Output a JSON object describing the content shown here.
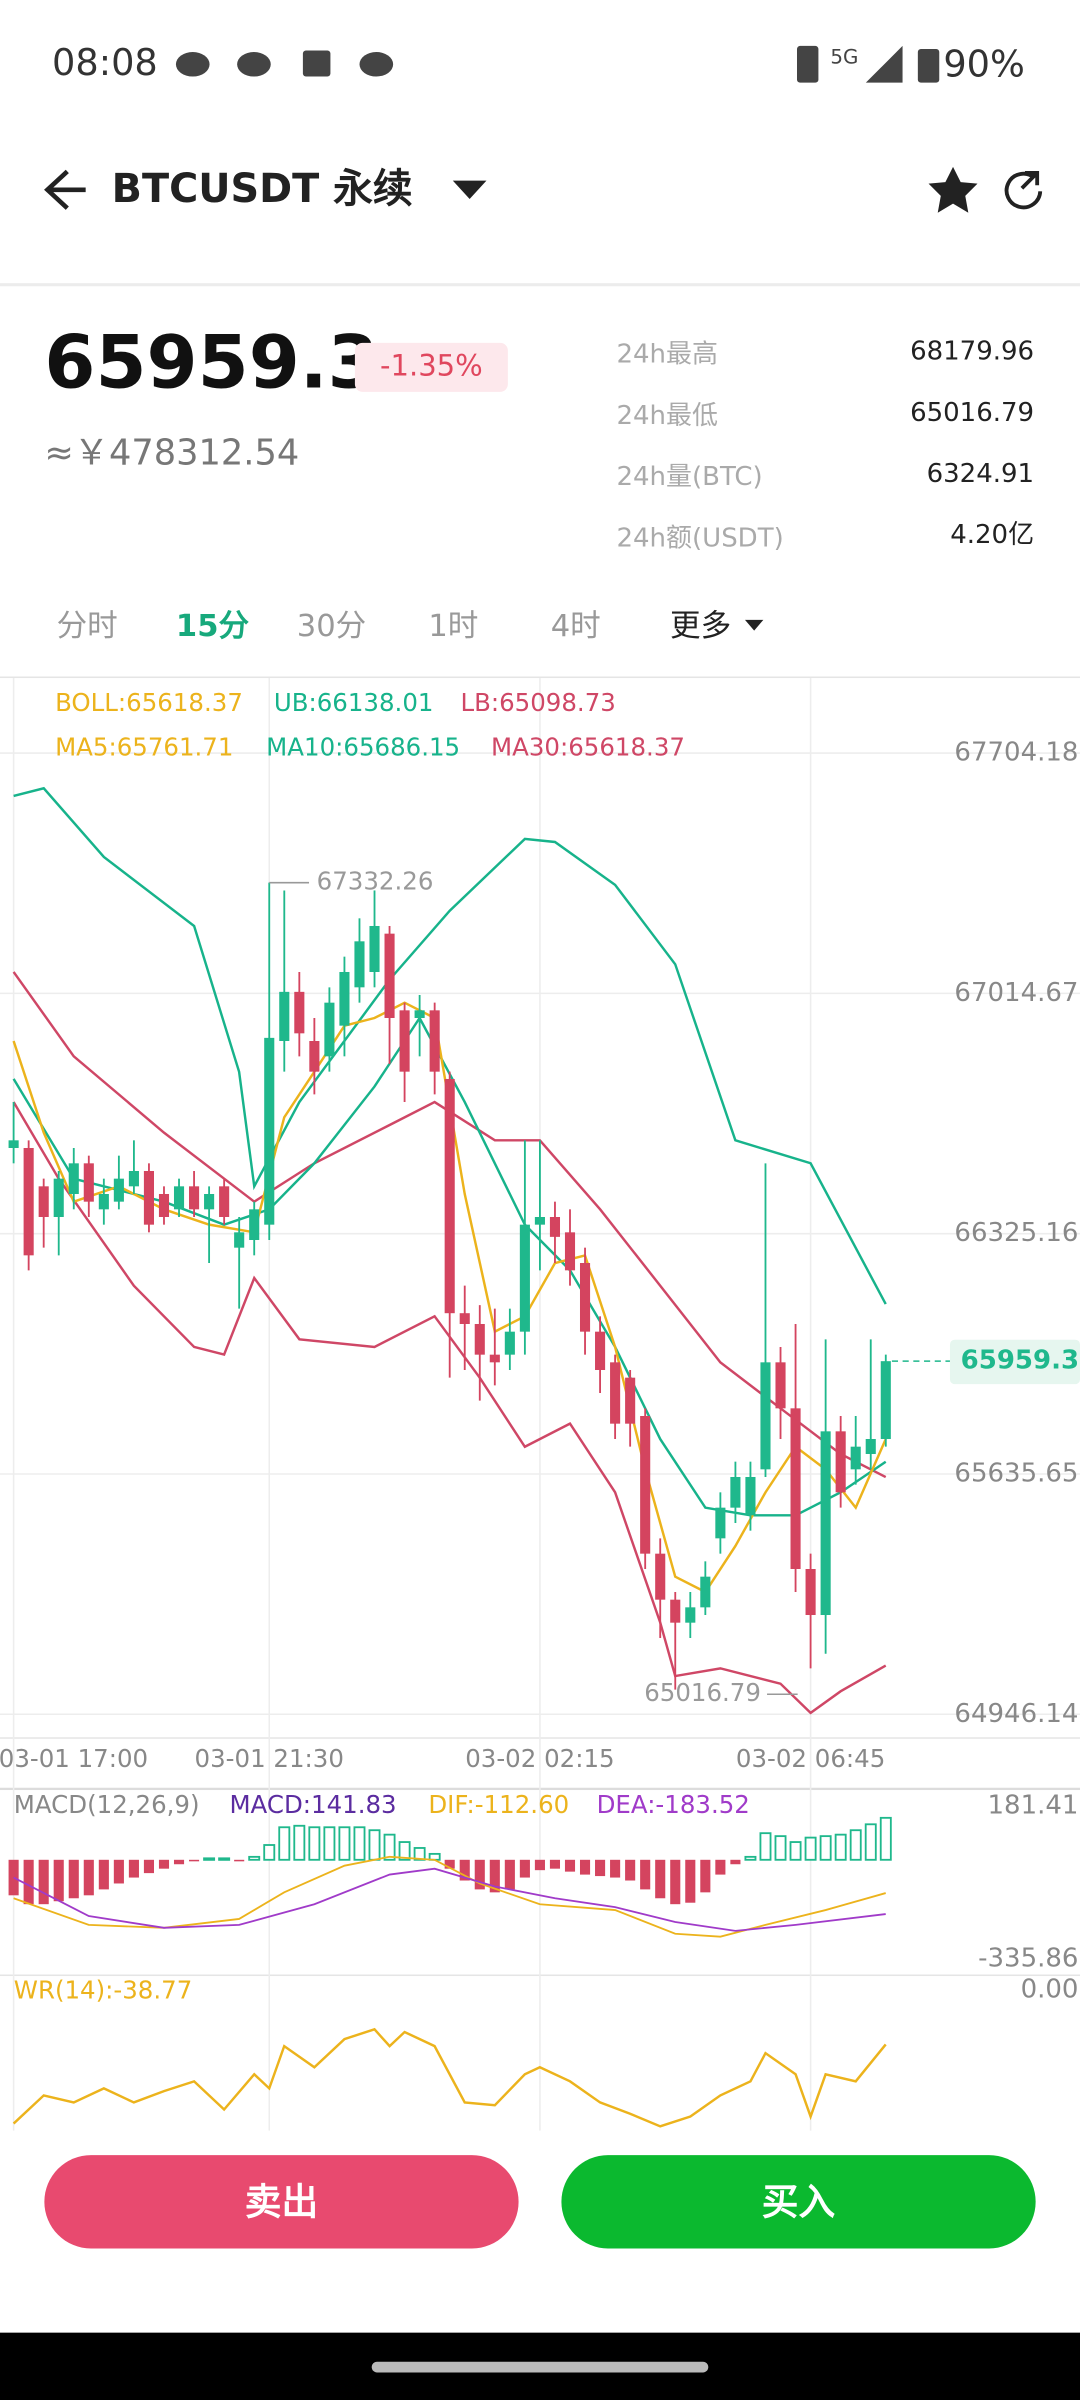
{
  "status_bar": {
    "time": "08:08",
    "network": "5G",
    "battery": "90%"
  },
  "header": {
    "title": "BTCUSDT 永续"
  },
  "ticker": {
    "price": "65959.3",
    "change": "-1.35%",
    "cny": "≈￥478312.54"
  },
  "stats": [
    {
      "label": "24h最高",
      "value": "68179.96"
    },
    {
      "label": "24h最低",
      "value": "65016.79"
    },
    {
      "label": "24h量(BTC)",
      "value": "6324.91"
    },
    {
      "label": "24h额(USDT)",
      "value": "4.20亿"
    }
  ],
  "tabs": [
    "分时",
    "15分",
    "30分",
    "1时",
    "4时",
    "更多"
  ],
  "buttons": {
    "sell": "卖出",
    "buy": "买入"
  },
  "chart_data": [
    {
      "type": "candlestick",
      "up_color": "#1fb88c",
      "down_color": "#d4445f",
      "legend": [
        {
          "text": "BOLL:65618.37",
          "color": "#ecb31c"
        },
        {
          "text": "UB:66138.01",
          "color": "#17b38b"
        },
        {
          "text": "LB:65098.73",
          "color": "#cf4766"
        },
        {
          "text": "MA5:65761.71",
          "color": "#ecb31c"
        },
        {
          "text": "MA10:65686.15",
          "color": "#17b38b"
        },
        {
          "text": "MA30:65618.37",
          "color": "#cf4766"
        }
      ],
      "categories": [
        "03-01 17:00",
        null,
        null,
        null,
        null,
        null,
        null,
        null,
        null,
        null,
        null,
        null,
        null,
        null,
        null,
        null,
        null,
        "03-01 21:30",
        null,
        null,
        null,
        null,
        null,
        null,
        null,
        null,
        null,
        null,
        null,
        null,
        null,
        null,
        null,
        null,
        null,
        "03-02 02:15",
        null,
        null,
        null,
        null,
        null,
        null,
        null,
        null,
        null,
        null,
        null,
        null,
        null,
        null,
        null,
        null,
        null,
        "03-02 06:45",
        null,
        null,
        null,
        null,
        null
      ],
      "open": [
        66571,
        66571,
        66461,
        66373,
        66439,
        66527,
        66395,
        66417,
        66461,
        66505,
        66439,
        66395,
        66461,
        66395,
        66461,
        66285,
        66307,
        66351,
        66878,
        67019,
        66878,
        66834,
        66922,
        67032,
        67076,
        67186,
        66966,
        66944,
        66966,
        66769,
        66097,
        66066,
        65978,
        65978,
        66044,
        66351,
        66373,
        66329,
        66241,
        66044,
        65956,
        65912,
        65802,
        65407,
        65275,
        65209,
        65253,
        65451,
        65539,
        65517,
        65649,
        65956,
        65824,
        65363,
        65231,
        65758,
        65649,
        65693,
        65736
      ],
      "high": [
        66703,
        66593,
        66483,
        66505,
        66571,
        66549,
        66483,
        66549,
        66593,
        66527,
        66461,
        66483,
        66505,
        66461,
        66483,
        66373,
        66417,
        67332.26,
        67310,
        67076,
        66944,
        67032,
        67120,
        67230,
        67310,
        67208,
        66988,
        67010,
        66988,
        66790,
        66176,
        66120,
        66110,
        66110,
        66593,
        66593,
        66417,
        66395,
        66285,
        66088,
        65978,
        65934,
        65824,
        65451,
        65297,
        65297,
        65385,
        65583,
        65671,
        65671,
        66527,
        66000,
        66066,
        65407,
        66022,
        65802,
        65802,
        66022,
        65978
      ],
      "low": [
        66527,
        66220,
        66285,
        66263,
        66395,
        66373,
        66351,
        66395,
        66439,
        66329,
        66351,
        66373,
        66373,
        66241,
        66351,
        66110,
        66263,
        66307,
        66790,
        66834,
        66725,
        66790,
        66834,
        66988,
        67032,
        66812,
        66703,
        66834,
        66725,
        65912,
        65934,
        65846,
        65890,
        65934,
        65978,
        66220,
        66241,
        66176,
        65978,
        65868,
        65736,
        65714,
        65363,
        65165,
        65016.79,
        65165,
        65231,
        65407,
        65495,
        65473,
        65627,
        65736,
        65297,
        65078,
        65120,
        65539,
        65605,
        65649,
        65714
      ],
      "close": [
        66593,
        66263,
        66373,
        66483,
        66527,
        66417,
        66439,
        66483,
        66505,
        66351,
        66373,
        66461,
        66395,
        66439,
        66373,
        66329,
        66395,
        66887,
        67019,
        66900,
        66790,
        66988,
        67076,
        67164,
        67208,
        66944,
        66790,
        66966,
        66790,
        66097,
        66066,
        65978,
        65956,
        66044,
        66351,
        66373,
        66316,
        66220,
        66044,
        65934,
        65780,
        65780,
        65407,
        65275,
        65209,
        65253,
        65341,
        65539,
        65627,
        65627,
        65956,
        65824,
        65363,
        65231,
        65758,
        65583,
        65714,
        65736,
        65959.34
      ],
      "lines": [
        {
          "color": "#17b38b",
          "x": [
            0,
            2,
            6,
            12,
            15,
            16,
            19,
            25,
            29,
            34,
            36,
            40,
            44,
            48,
            53,
            58
          ],
          "values": [
            67581,
            67603,
            67406,
            67208,
            66790,
            66461,
            66703,
            67054,
            67252,
            67458,
            67449,
            67326,
            67098,
            66593,
            66527,
            66123
          ]
        },
        {
          "color": "#cf4766",
          "x": [
            0,
            4,
            10,
            16,
            20,
            25,
            28,
            32,
            35,
            39,
            43,
            47,
            51,
            55,
            58
          ],
          "values": [
            67076,
            66834,
            66615,
            66417,
            66527,
            66637,
            66703,
            66593,
            66593,
            66395,
            66176,
            65956,
            65824,
            65693,
            65627
          ]
        },
        {
          "color": "#cf4766",
          "x": [
            0,
            3,
            8,
            12,
            14,
            16,
            19,
            24,
            28,
            31,
            34,
            37,
            40,
            43,
            44,
            47,
            51,
            53,
            55,
            58
          ],
          "values": [
            66703,
            66483,
            66176,
            66000,
            65978,
            66198,
            66022,
            66000,
            66088,
            65912,
            65714,
            65780,
            65583,
            65209,
            65056,
            65078,
            65034,
            64950,
            65012,
            65086
          ]
        },
        {
          "color": "#17b38b",
          "x": [
            0,
            4,
            10,
            14,
            17,
            20,
            24,
            27,
            30,
            34,
            37,
            40,
            43,
            46,
            49,
            52,
            55,
            58
          ],
          "values": [
            66769,
            66483,
            66417,
            66351,
            66395,
            66527,
            66747,
            66944,
            66703,
            66351,
            66220,
            66000,
            65736,
            65539,
            65517,
            65517,
            65583,
            65671
          ]
        },
        {
          "color": "#ecb31c",
          "x": [
            0,
            2,
            4,
            7,
            10,
            13,
            16,
            18,
            20,
            22,
            24,
            26,
            28,
            30,
            32,
            34,
            36,
            38,
            40,
            42,
            44,
            46,
            48,
            50,
            52,
            54,
            56,
            58
          ],
          "values": [
            66878,
            66615,
            66417,
            66461,
            66395,
            66351,
            66329,
            66659,
            66790,
            66922,
            66944,
            66988,
            66944,
            66439,
            66044,
            66088,
            66241,
            66263,
            66000,
            65649,
            65341,
            65297,
            65429,
            65583,
            65714,
            65649,
            65539,
            65736
          ]
        }
      ],
      "ylim": [
        64946.14,
        67704.18
      ],
      "yticks": [
        67704.18,
        67014.67,
        66325.16,
        65635.65,
        64946.14
      ],
      "grid": true
    },
    {
      "type": "bar",
      "up_color": "#1fb88c",
      "down_color": "#d4445f",
      "legend": [
        {
          "text": "MACD(12,26,9)",
          "color": "#888888"
        },
        {
          "text": "MACD:141.83",
          "color": "#5b2ca0"
        },
        {
          "text": "DIF:-112.60",
          "color": "#ecb31c"
        },
        {
          "text": "DEA:-183.52",
          "color": "#a03bc9"
        }
      ],
      "values": [
        -120,
        -150,
        -150,
        -140,
        -130,
        -120,
        -100,
        -80,
        -60,
        -45,
        -30,
        -15,
        -5,
        5,
        5,
        -5,
        10,
        50,
        110,
        115,
        110,
        110,
        110,
        110,
        100,
        85,
        60,
        40,
        20,
        -30,
        -70,
        -100,
        -110,
        -100,
        -60,
        -35,
        -30,
        -40,
        -50,
        -55,
        -60,
        -70,
        -100,
        -130,
        -150,
        -145,
        -110,
        -50,
        -15,
        10,
        90,
        80,
        60,
        75,
        80,
        85,
        100,
        120,
        141.83
      ],
      "lines": [
        {
          "color": "#ecb31c",
          "x": [
            0,
            5,
            10,
            15,
            18,
            22,
            25,
            28,
            31,
            35,
            40,
            44,
            47,
            50,
            54,
            58
          ],
          "values": [
            -130,
            -220,
            -230,
            -200,
            -110,
            -20,
            10,
            0,
            -80,
            -150,
            -170,
            -250,
            -260,
            -220,
            -170,
            -112.6
          ]
        },
        {
          "color": "#a03bc9",
          "x": [
            0,
            5,
            10,
            15,
            20,
            25,
            28,
            32,
            36,
            40,
            44,
            48,
            52,
            58
          ],
          "values": [
            -60,
            -190,
            -230,
            -220,
            -150,
            -50,
            -30,
            -90,
            -130,
            -160,
            -210,
            -240,
            -220,
            -183.52
          ]
        }
      ],
      "ylim": [
        -335.86,
        181.41
      ],
      "yticks": [
        181.41,
        -335.86
      ]
    },
    {
      "type": "line",
      "color": "#ecb31c",
      "legend": [
        {
          "text": "WR(14):-38.77",
          "color": "#ecb31c"
        }
      ],
      "x": [
        0,
        2,
        4,
        6,
        8,
        10,
        12,
        14,
        16,
        17,
        18,
        20,
        22,
        24,
        25,
        26,
        28,
        30,
        32,
        34,
        35,
        37,
        39,
        41,
        43,
        45,
        47,
        49,
        50,
        52,
        53,
        54,
        56,
        58
      ],
      "values": [
        -95,
        -75,
        -80,
        -70,
        -80,
        -72,
        -65,
        -85,
        -60,
        -70,
        -40,
        -55,
        -35,
        -28,
        -40,
        -30,
        -40,
        -80,
        -82,
        -60,
        -55,
        -65,
        -80,
        -88,
        -97,
        -90,
        -75,
        -65,
        -45,
        -60,
        -90,
        -60,
        -65,
        -38.77
      ],
      "ylim": [
        -100,
        0
      ],
      "yticks": [
        {
          "value": 0,
          "label": "0.00"
        }
      ]
    }
  ]
}
